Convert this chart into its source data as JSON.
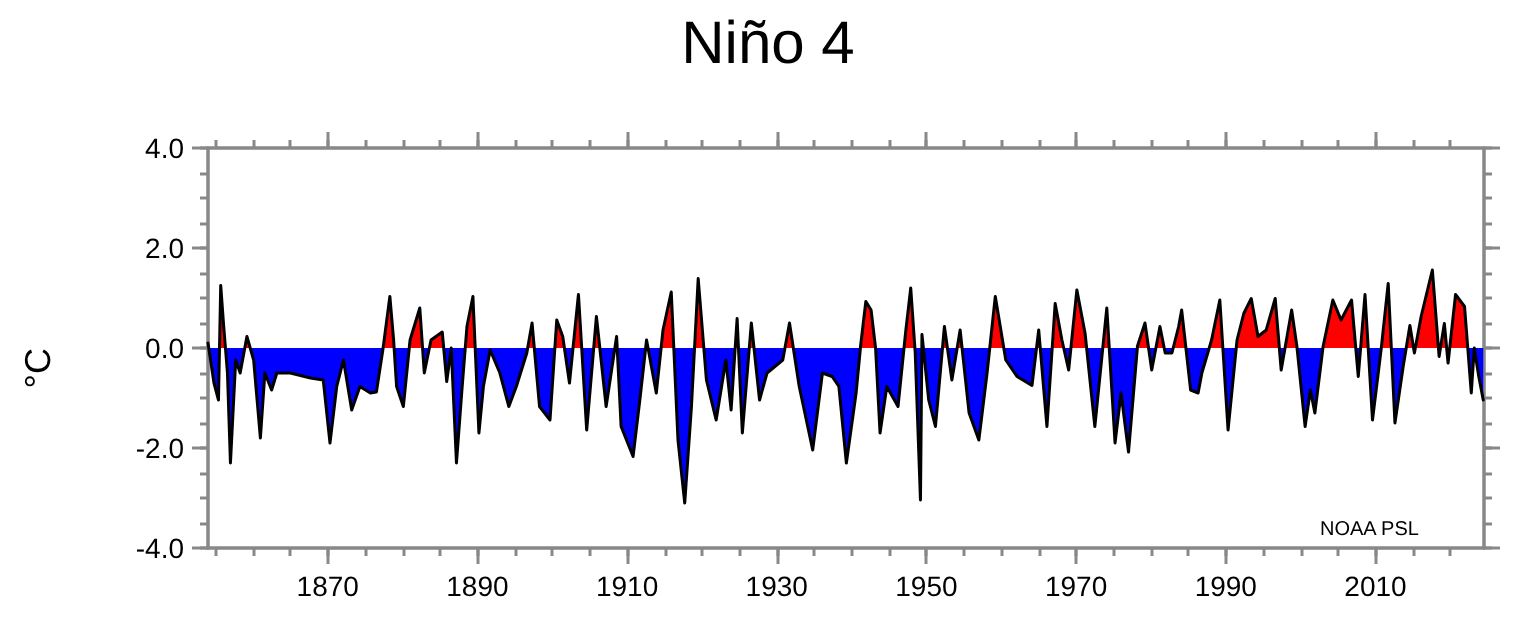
{
  "chart_data": {
    "type": "area",
    "title": "Niño 4",
    "ylabel": "°C",
    "annotations": [
      "NOAA PSL"
    ],
    "xlim": [
      1854,
      2024.5
    ],
    "xticks": [
      1870,
      1890,
      1910,
      1930,
      1950,
      1970,
      1990,
      2010
    ],
    "ylim": [
      -4,
      4
    ],
    "yticks": [
      {
        "value": -4,
        "label": "-4.0"
      },
      {
        "value": -2,
        "label": "-2.0"
      },
      {
        "value": 0,
        "label": "0.0"
      },
      {
        "value": 2,
        "label": "2.0"
      },
      {
        "value": 4,
        "label": "4.0"
      }
    ],
    "grid": false,
    "marker": "none",
    "line_style": "solid",
    "colors": [
      "#ff0000",
      "#0000ff"
    ],
    "series": [
      {
        "color": "#000000",
        "x": [
          1854.0,
          1854.8,
          1855.4,
          1855.7,
          1856.1,
          1856.6,
          1857.0,
          1857.7,
          1858.3,
          1859.2,
          1860.1,
          1861.0,
          1861.6,
          1862.5,
          1863.2,
          1865.0,
          1867.7,
          1869.4,
          1870.3,
          1871.2,
          1872.1,
          1873.2,
          1874.3,
          1875.7,
          1876.5,
          1877.4,
          1878.3,
          1878.8,
          1879.2,
          1880.1,
          1881.0,
          1882.3,
          1882.9,
          1883.8,
          1885.3,
          1885.9,
          1886.5,
          1887.2,
          1887.9,
          1888.6,
          1889.4,
          1890.2,
          1890.8,
          1891.7,
          1893.0,
          1894.2,
          1895.2,
          1896.6,
          1897.3,
          1898.3,
          1899.7,
          1900.6,
          1901.4,
          1902.3,
          1903.5,
          1904.6,
          1905.9,
          1907.2,
          1908.6,
          1909.2,
          1910.8,
          1911.7,
          1912.6,
          1913.9,
          1914.8,
          1915.9,
          1916.8,
          1917.7,
          1918.6,
          1919.5,
          1920.6,
          1921.9,
          1923.2,
          1923.9,
          1924.7,
          1925.4,
          1926.6,
          1927.7,
          1928.7,
          1930.8,
          1931.7,
          1933.0,
          1934.8,
          1936.1,
          1937.4,
          1938.3,
          1939.3,
          1940.6,
          1941.2,
          1941.9,
          1942.6,
          1943.2,
          1943.8,
          1944.7,
          1946.2,
          1947.2,
          1947.9,
          1948.5,
          1949.2,
          1949.4,
          1950.3,
          1951.2,
          1952.4,
          1953.4,
          1954.5,
          1955.7,
          1957.0,
          1958.1,
          1959.2,
          1960.6,
          1962.1,
          1964.1,
          1965.0,
          1966.1,
          1967.2,
          1968.1,
          1969.0,
          1970.1,
          1971.2,
          1972.5,
          1974.1,
          1975.2,
          1976.0,
          1977.0,
          1978.2,
          1979.2,
          1980.1,
          1981.2,
          1981.9,
          1982.8,
          1983.7,
          1984.1,
          1985.3,
          1986.3,
          1986.8,
          1988.1,
          1989.2,
          1990.3,
          1991.5,
          1992.4,
          1993.4,
          1994.3,
          1995.4,
          1996.6,
          1997.4,
          1998.8,
          1999.5,
          2000.6,
          2001.3,
          2001.9,
          2003.0,
          2004.3,
          2005.4,
          2006.8,
          2007.7,
          2008.6,
          2009.6,
          2010.8,
          2011.7,
          2012.6,
          2013.7,
          2014.6,
          2015.2,
          2016.1,
          2017.6,
          2018.5,
          2019.2,
          2019.7,
          2020.7,
          2021.9,
          2022.8,
          2023.2,
          2023.8,
          2024.4
        ],
        "values": [
          0.1,
          -0.7,
          -1.04,
          1.25,
          0.43,
          -0.5,
          -2.3,
          -0.24,
          -0.5,
          0.23,
          -0.24,
          -1.8,
          -0.5,
          -0.84,
          -0.5,
          -0.5,
          -0.6,
          -0.64,
          -1.9,
          -0.77,
          -0.24,
          -1.24,
          -0.77,
          -0.9,
          -0.88,
          0,
          1.03,
          0.16,
          -0.77,
          -1.17,
          0.16,
          0.8,
          -0.5,
          0.16,
          0.32,
          -0.67,
          0,
          -2.3,
          -0.9,
          0.43,
          1.03,
          -1.7,
          -0.77,
          -0.04,
          -0.5,
          -1.17,
          -0.77,
          -0.1,
          0.5,
          -1.17,
          -1.44,
          0.56,
          0.23,
          -0.7,
          1.07,
          -1.64,
          0.63,
          -1.17,
          0.23,
          -1.57,
          -2.17,
          -1.04,
          0.16,
          -0.9,
          0.36,
          1.12,
          -1.84,
          -3.1,
          -1.17,
          1.39,
          -0.64,
          -1.44,
          -0.24,
          -1.24,
          0.59,
          -1.7,
          0.5,
          -1.04,
          -0.5,
          -0.24,
          0.5,
          -0.77,
          -2.04,
          -0.5,
          -0.57,
          -0.77,
          -2.3,
          -0.9,
          0.04,
          0.93,
          0.76,
          0,
          -1.7,
          -0.77,
          -1.17,
          0.29,
          1.2,
          -0.1,
          -3.04,
          0.27,
          -1.04,
          -1.57,
          0.43,
          -0.64,
          0.36,
          -1.3,
          -1.84,
          -0.5,
          1.03,
          -0.24,
          -0.57,
          -0.75,
          0.36,
          -1.57,
          0.89,
          0.16,
          -0.44,
          1.16,
          0.29,
          -1.57,
          0.8,
          -1.9,
          -0.9,
          -2.08,
          0.04,
          0.5,
          -0.44,
          0.43,
          -0.1,
          -0.1,
          0.43,
          0.76,
          -0.84,
          -0.9,
          -0.5,
          0.16,
          0.96,
          -1.64,
          0.16,
          0.69,
          0.99,
          0.23,
          0.36,
          0.99,
          -0.44,
          0.76,
          0.03,
          -1.57,
          -0.84,
          -1.3,
          0.03,
          0.96,
          0.56,
          0.96,
          -0.57,
          1.07,
          -1.44,
          0.03,
          1.29,
          -1.5,
          -0.37,
          0.45,
          -0.1,
          0.63,
          1.56,
          -0.17,
          0.49,
          -0.3,
          1.07,
          0.83,
          -0.9,
          0,
          -0.57,
          -1.04
        ]
      }
    ]
  }
}
